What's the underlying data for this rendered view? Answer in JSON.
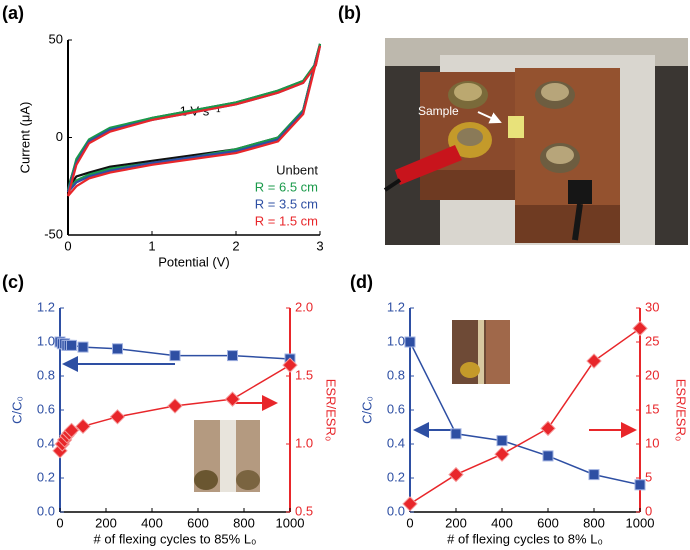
{
  "chart_data": [
    {
      "type": "line",
      "panel_label": "(a)",
      "x_label": "Potential (V)",
      "y_label": "Current (μA)",
      "annotation": "1 V s⁻¹",
      "x": [
        0,
        0.1,
        0.25,
        0.5,
        1,
        1.5,
        2,
        2.5,
        2.8,
        2.95,
        3,
        2.95,
        2.8,
        2.5,
        2,
        1.5,
        1,
        0.5,
        0.25,
        0.1,
        0
      ],
      "series": [
        {
          "name": "Unbent",
          "color": "#111111",
          "values": [
            -26,
            -12,
            -2,
            4,
            10,
            14,
            18,
            24,
            29,
            38,
            48,
            40,
            14,
            0,
            -6,
            -9,
            -12,
            -15,
            -18,
            -20,
            -26
          ]
        },
        {
          "name": "R = 6.5 cm",
          "color": "#1a9a4a",
          "values": [
            -27,
            -11,
            -1,
            5,
            10,
            14,
            18,
            24,
            29,
            38,
            48,
            40,
            14,
            0,
            -6,
            -10,
            -13,
            -16,
            -19,
            -22,
            -27
          ]
        },
        {
          "name": "R = 3.5 cm",
          "color": "#2e4fa3",
          "values": [
            -28,
            -13,
            -2,
            4,
            9,
            13,
            17,
            23,
            28,
            37,
            47,
            39,
            13,
            -1,
            -7,
            -10,
            -13,
            -17,
            -20,
            -23,
            -28
          ]
        },
        {
          "name": "R = 1.5 cm",
          "color": "#e8262a",
          "values": [
            -30,
            -14,
            -3,
            3,
            9,
            13,
            17,
            23,
            28,
            37,
            47,
            38,
            12,
            -2,
            -8,
            -11,
            -14,
            -18,
            -21,
            -25,
            -30
          ]
        }
      ],
      "xlim": [
        0,
        3
      ],
      "xticks": [
        0,
        1,
        2,
        3
      ],
      "ylim": [
        -50,
        50
      ],
      "yticks": [
        -50,
        0,
        50
      ],
      "legend": "lower right"
    },
    {
      "type": "line",
      "panel_label": "(c)",
      "x_label": "# of flexing cycles to 85% L₀",
      "y_label": "C/C₀",
      "y2_label": "ESR/ESR₀",
      "y_axis_color": "#2e4fa3",
      "y2_axis_color": "#e8262a",
      "series": [
        {
          "name": "C/C₀",
          "color": "#2e4fa3",
          "marker": "square",
          "x": [
            0,
            10,
            20,
            30,
            40,
            50,
            100,
            250,
            500,
            750,
            1000
          ],
          "values": [
            1.0,
            0.99,
            0.99,
            0.98,
            0.98,
            0.98,
            0.97,
            0.96,
            0.92,
            0.92,
            0.9
          ]
        },
        {
          "name": "ESR/ESR₀",
          "color": "#e8262a",
          "marker": "diamond",
          "axis": "y2",
          "x": [
            0,
            10,
            20,
            30,
            40,
            50,
            100,
            250,
            500,
            750,
            1000
          ],
          "values": [
            0.95,
            1.0,
            1.03,
            1.06,
            1.08,
            1.1,
            1.13,
            1.2,
            1.28,
            1.33,
            1.58
          ]
        }
      ],
      "xlim": [
        0,
        1000
      ],
      "xticks": [
        0,
        200,
        400,
        600,
        800,
        1000
      ],
      "ylim": [
        0,
        1.2
      ],
      "yticks": [
        {
          "value": 0,
          "label": "0.0"
        },
        0.2,
        0.4,
        0.6,
        0.8,
        {
          "value": 1,
          "label": "1.0"
        },
        1.2
      ],
      "y2lim": [
        0.5,
        2.0
      ],
      "y2ticks": [
        0.5,
        {
          "value": 1,
          "label": "1.0"
        },
        1.5,
        {
          "value": 2,
          "label": "2.0"
        }
      ]
    },
    {
      "type": "line",
      "panel_label": "(d)",
      "x_label": "# of flexing cycles to 8% L₀",
      "y_label": "C/C₀",
      "y2_label": "ESR/ESR₀",
      "y_axis_color": "#2e4fa3",
      "y2_axis_color": "#e8262a",
      "series": [
        {
          "name": "C/C₀",
          "color": "#2e4fa3",
          "marker": "square",
          "x": [
            0,
            200,
            400,
            600,
            800,
            1000
          ],
          "values": [
            1.0,
            0.46,
            0.42,
            0.33,
            0.22,
            0.16
          ]
        },
        {
          "name": "ESR/ESR₀",
          "color": "#e8262a",
          "marker": "diamond",
          "axis": "y2",
          "x": [
            0,
            200,
            400,
            600,
            800,
            1000
          ],
          "values": [
            1.2,
            5.5,
            8.5,
            12.3,
            22.2,
            27
          ]
        }
      ],
      "xlim": [
        0,
        1000
      ],
      "xticks": [
        0,
        200,
        400,
        600,
        800,
        1000
      ],
      "ylim": [
        0,
        1.2
      ],
      "yticks": [
        {
          "value": 0,
          "label": "0.0"
        },
        0.2,
        0.4,
        0.6,
        0.8,
        {
          "value": 1,
          "label": "1.0"
        },
        1.2
      ],
      "y2lim": [
        0,
        30
      ],
      "y2ticks": [
        0,
        5,
        10,
        15,
        20,
        25,
        30
      ]
    }
  ],
  "photo": {
    "panel_label": "(b)",
    "annotation": "Sample"
  }
}
